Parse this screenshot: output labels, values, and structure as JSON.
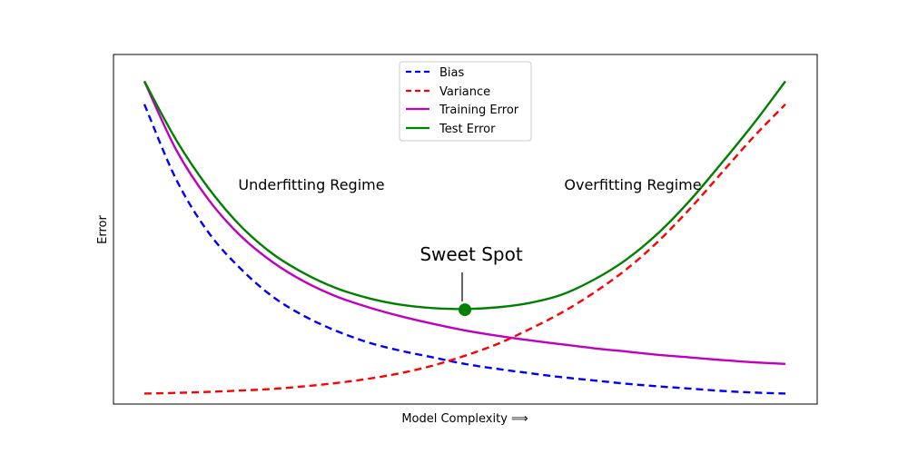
{
  "chart_data": {
    "type": "line",
    "title": "",
    "xlabel": "Model Complexity ⟹",
    "ylabel": "Error",
    "xlim": [
      0,
      10
    ],
    "ylim": [
      0,
      10
    ],
    "grid": false,
    "legend_position": "top-center",
    "x": [
      0,
      0.5,
      1,
      1.5,
      2,
      2.5,
      3,
      3.5,
      4,
      4.5,
      5,
      5.5,
      6,
      6.5,
      7,
      7.5,
      8,
      8.5,
      9,
      9.5,
      10
    ],
    "series": [
      {
        "name": "Bias",
        "style": "dashed",
        "color": "#0000ff",
        "values": [
          8.9,
          6.6,
          5.0,
          3.9,
          3.05,
          2.45,
          2.0,
          1.65,
          1.4,
          1.2,
          1.0,
          0.85,
          0.72,
          0.6,
          0.5,
          0.4,
          0.32,
          0.25,
          0.18,
          0.13,
          0.1
        ]
      },
      {
        "name": "Variance",
        "style": "dashed",
        "color": "#ff0000",
        "values": [
          0.1,
          0.12,
          0.15,
          0.19,
          0.24,
          0.32,
          0.42,
          0.55,
          0.72,
          0.95,
          1.25,
          1.6,
          2.05,
          2.55,
          3.15,
          3.85,
          4.7,
          5.7,
          6.8,
          7.9,
          8.9
        ]
      },
      {
        "name": "Training Error",
        "style": "solid",
        "color": "#bf00bf",
        "values": [
          9.6,
          7.5,
          6.0,
          4.9,
          4.1,
          3.5,
          3.05,
          2.72,
          2.45,
          2.22,
          2.02,
          1.86,
          1.72,
          1.6,
          1.48,
          1.38,
          1.28,
          1.2,
          1.12,
          1.05,
          1.0
        ]
      },
      {
        "name": "Test Error",
        "style": "solid",
        "color": "#008000",
        "values": [
          9.6,
          7.8,
          6.35,
          5.2,
          4.35,
          3.75,
          3.3,
          3.0,
          2.8,
          2.7,
          2.67,
          2.72,
          2.85,
          3.1,
          3.55,
          4.15,
          4.95,
          5.95,
          7.1,
          8.3,
          9.6
        ]
      }
    ],
    "annotations": [
      {
        "text": "Underfitting Regime",
        "x": 2.6,
        "y": 6.5
      },
      {
        "text": "Overfitting Regime",
        "x": 7.6,
        "y": 6.5
      },
      {
        "text": "Sweet Spot",
        "x": 5.1,
        "y": 4.35
      }
    ],
    "sweet_spot": {
      "x": 5.0,
      "y": 2.65,
      "color": "#008000"
    }
  }
}
